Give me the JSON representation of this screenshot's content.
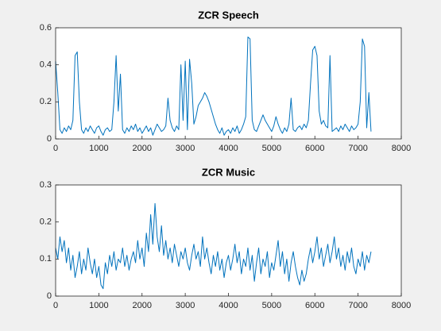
{
  "chart_data": [
    {
      "type": "line",
      "title": "ZCR Speech",
      "x": [
        0,
        50,
        100,
        150,
        200,
        250,
        300,
        350,
        400,
        450,
        500,
        550,
        600,
        650,
        700,
        750,
        800,
        850,
        900,
        950,
        1000,
        1050,
        1100,
        1150,
        1200,
        1250,
        1300,
        1350,
        1400,
        1450,
        1500,
        1550,
        1600,
        1650,
        1700,
        1750,
        1800,
        1850,
        1900,
        1950,
        2000,
        2050,
        2100,
        2150,
        2200,
        2250,
        2300,
        2350,
        2400,
        2450,
        2500,
        2550,
        2600,
        2650,
        2700,
        2750,
        2800,
        2850,
        2900,
        2950,
        3000,
        3050,
        3100,
        3150,
        3200,
        3250,
        3300,
        3350,
        3400,
        3450,
        3500,
        3550,
        3600,
        3650,
        3700,
        3750,
        3800,
        3850,
        3900,
        3950,
        4000,
        4050,
        4100,
        4150,
        4200,
        4250,
        4300,
        4350,
        4400,
        4450,
        4500,
        4550,
        4600,
        4650,
        4700,
        4750,
        4800,
        4850,
        4900,
        4950,
        5000,
        5050,
        5100,
        5150,
        5200,
        5250,
        5300,
        5350,
        5400,
        5450,
        5500,
        5550,
        5600,
        5650,
        5700,
        5750,
        5800,
        5850,
        5900,
        5950,
        6000,
        6050,
        6100,
        6150,
        6200,
        6250,
        6300,
        6350,
        6400,
        6450,
        6500,
        6550,
        6600,
        6650,
        6700,
        6750,
        6800,
        6850,
        6900,
        6950,
        7000,
        7050,
        7100,
        7150,
        7200,
        7250,
        7300
      ],
      "series": [
        {
          "color": "#0072bd",
          "values": [
            0.42,
            0.25,
            0.05,
            0.03,
            0.06,
            0.04,
            0.07,
            0.05,
            0.1,
            0.45,
            0.47,
            0.2,
            0.05,
            0.03,
            0.06,
            0.04,
            0.07,
            0.05,
            0.03,
            0.06,
            0.07,
            0.04,
            0.02,
            0.05,
            0.06,
            0.04,
            0.05,
            0.2,
            0.45,
            0.15,
            0.35,
            0.05,
            0.03,
            0.06,
            0.04,
            0.07,
            0.05,
            0.08,
            0.04,
            0.06,
            0.03,
            0.05,
            0.07,
            0.04,
            0.06,
            0.02,
            0.05,
            0.08,
            0.06,
            0.04,
            0.05,
            0.07,
            0.22,
            0.1,
            0.06,
            0.04,
            0.07,
            0.05,
            0.4,
            0.1,
            0.42,
            0.05,
            0.43,
            0.3,
            0.08,
            0.12,
            0.18,
            0.2,
            0.22,
            0.25,
            0.23,
            0.2,
            0.16,
            0.12,
            0.08,
            0.05,
            0.03,
            0.06,
            0.02,
            0.04,
            0.05,
            0.03,
            0.06,
            0.04,
            0.07,
            0.03,
            0.05,
            0.08,
            0.12,
            0.55,
            0.54,
            0.1,
            0.05,
            0.04,
            0.07,
            0.1,
            0.13,
            0.1,
            0.08,
            0.06,
            0.04,
            0.07,
            0.12,
            0.08,
            0.05,
            0.03,
            0.06,
            0.04,
            0.08,
            0.22,
            0.05,
            0.04,
            0.06,
            0.07,
            0.05,
            0.08,
            0.06,
            0.1,
            0.3,
            0.48,
            0.5,
            0.45,
            0.15,
            0.08,
            0.1,
            0.07,
            0.06,
            0.45,
            0.04,
            0.05,
            0.06,
            0.04,
            0.07,
            0.05,
            0.08,
            0.06,
            0.04,
            0.07,
            0.05,
            0.06,
            0.08,
            0.2,
            0.54,
            0.5,
            0.06,
            0.25,
            0.04
          ]
        }
      ],
      "xlim": [
        0,
        8000
      ],
      "xticks": [
        0,
        1000,
        2000,
        3000,
        4000,
        5000,
        6000,
        7000,
        8000
      ],
      "ylim": [
        0,
        0.6
      ],
      "yticks": [
        0,
        0.2,
        0.4,
        0.6
      ]
    },
    {
      "type": "line",
      "title": "ZCR Music",
      "x": [
        0,
        50,
        100,
        150,
        200,
        250,
        300,
        350,
        400,
        450,
        500,
        550,
        600,
        650,
        700,
        750,
        800,
        850,
        900,
        950,
        1000,
        1050,
        1100,
        1150,
        1200,
        1250,
        1300,
        1350,
        1400,
        1450,
        1500,
        1550,
        1600,
        1650,
        1700,
        1750,
        1800,
        1850,
        1900,
        1950,
        2000,
        2050,
        2100,
        2150,
        2200,
        2250,
        2300,
        2350,
        2400,
        2450,
        2500,
        2550,
        2600,
        2650,
        2700,
        2750,
        2800,
        2850,
        2900,
        2950,
        3000,
        3050,
        3100,
        3150,
        3200,
        3250,
        3300,
        3350,
        3400,
        3450,
        3500,
        3550,
        3600,
        3650,
        3700,
        3750,
        3800,
        3850,
        3900,
        3950,
        4000,
        4050,
        4100,
        4150,
        4200,
        4250,
        4300,
        4350,
        4400,
        4450,
        4500,
        4550,
        4600,
        4650,
        4700,
        4750,
        4800,
        4850,
        4900,
        4950,
        5000,
        5050,
        5100,
        5150,
        5200,
        5250,
        5300,
        5350,
        5400,
        5450,
        5500,
        5550,
        5600,
        5650,
        5700,
        5750,
        5800,
        5850,
        5900,
        5950,
        6000,
        6050,
        6100,
        6150,
        6200,
        6250,
        6300,
        6350,
        6400,
        6450,
        6500,
        6550,
        6600,
        6650,
        6700,
        6750,
        6800,
        6850,
        6900,
        6950,
        7000,
        7050,
        7100,
        7150,
        7200,
        7250,
        7300
      ],
      "series": [
        {
          "color": "#0072bd",
          "values": [
            0.13,
            0.1,
            0.16,
            0.12,
            0.15,
            0.09,
            0.13,
            0.07,
            0.11,
            0.05,
            0.08,
            0.12,
            0.06,
            0.1,
            0.07,
            0.13,
            0.09,
            0.06,
            0.1,
            0.05,
            0.08,
            0.03,
            0.02,
            0.09,
            0.06,
            0.11,
            0.08,
            0.12,
            0.07,
            0.1,
            0.09,
            0.13,
            0.08,
            0.11,
            0.07,
            0.1,
            0.12,
            0.09,
            0.15,
            0.1,
            0.13,
            0.08,
            0.17,
            0.12,
            0.22,
            0.14,
            0.25,
            0.16,
            0.12,
            0.19,
            0.11,
            0.15,
            0.1,
            0.13,
            0.09,
            0.14,
            0.11,
            0.08,
            0.12,
            0.1,
            0.13,
            0.09,
            0.07,
            0.11,
            0.14,
            0.1,
            0.12,
            0.08,
            0.16,
            0.1,
            0.13,
            0.09,
            0.06,
            0.11,
            0.08,
            0.12,
            0.07,
            0.1,
            0.05,
            0.09,
            0.11,
            0.07,
            0.1,
            0.14,
            0.09,
            0.12,
            0.06,
            0.1,
            0.08,
            0.13,
            0.07,
            0.11,
            0.04,
            0.09,
            0.13,
            0.06,
            0.1,
            0.08,
            0.12,
            0.05,
            0.09,
            0.07,
            0.11,
            0.15,
            0.08,
            0.12,
            0.06,
            0.1,
            0.04,
            0.09,
            0.12,
            0.08,
            0.05,
            0.03,
            0.07,
            0.04,
            0.06,
            0.1,
            0.13,
            0.09,
            0.12,
            0.16,
            0.1,
            0.13,
            0.08,
            0.11,
            0.14,
            0.09,
            0.12,
            0.16,
            0.1,
            0.13,
            0.08,
            0.11,
            0.07,
            0.12,
            0.09,
            0.13,
            0.08,
            0.06,
            0.1,
            0.08,
            0.12,
            0.07,
            0.11,
            0.09,
            0.12
          ]
        }
      ],
      "xlim": [
        0,
        8000
      ],
      "xticks": [
        0,
        1000,
        2000,
        3000,
        4000,
        5000,
        6000,
        7000,
        8000
      ],
      "ylim": [
        0,
        0.3
      ],
      "yticks": [
        0,
        0.1,
        0.2,
        0.3
      ]
    }
  ]
}
